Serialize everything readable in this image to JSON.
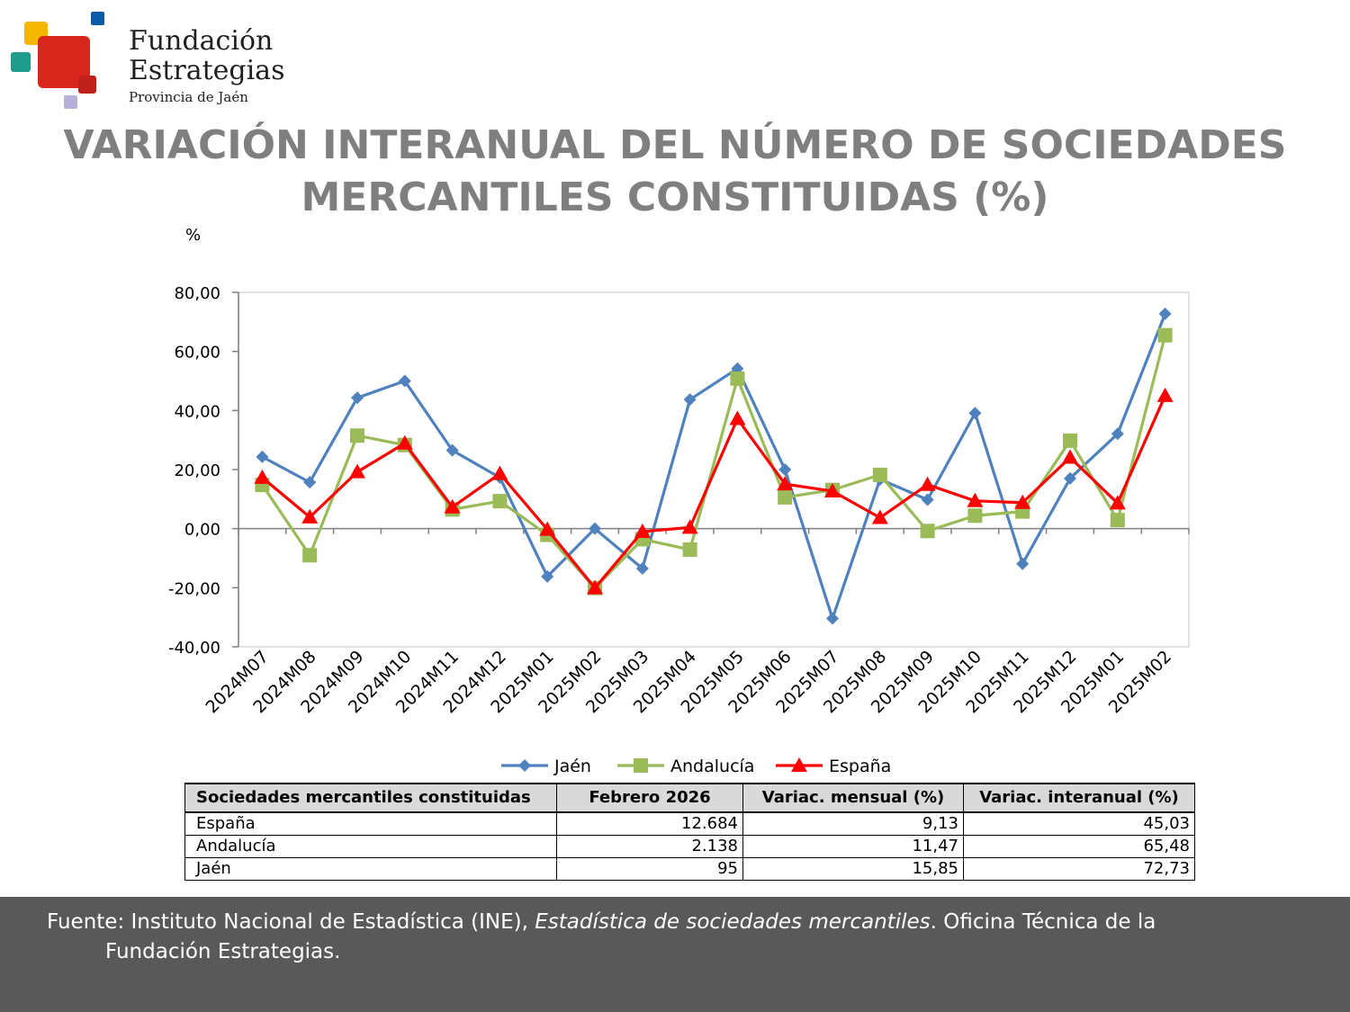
{
  "logo": {
    "line1": "Fundación",
    "line2": "Estrategias",
    "subtitle": "Provincia de Jaén",
    "colors": [
      "#f5b800",
      "#d9261c",
      "#0b5aa6",
      "#1e9c8d",
      "#b8b0d8"
    ]
  },
  "title": {
    "line1": "VARIACIÓN INTERANUAL DEL NÚMERO DE SOCIEDADES",
    "line2": "MERCANTILES CONSTITUIDAS (%)"
  },
  "chart_data": {
    "type": "line",
    "ylabel": "%",
    "ylim": [
      -40,
      80
    ],
    "yticks": [
      80,
      60,
      40,
      20,
      0,
      -20,
      -40
    ],
    "ytick_labels": [
      "80,00",
      "60,00",
      "40,00",
      "20,00",
      "0,00",
      "-20,00",
      "-40,00"
    ],
    "grid": false,
    "legend_position": "bottom",
    "categories": [
      "2024M07",
      "2024M08",
      "2024M09",
      "2024M10",
      "2024M11",
      "2024M12",
      "2025M01",
      "2025M02",
      "2025M03",
      "2025M04",
      "2025M05",
      "2025M06",
      "2025M07",
      "2025M08",
      "2025M09",
      "2025M10",
      "2025M11",
      "2025M12",
      "2025M01",
      "2025M02"
    ],
    "series": [
      {
        "name": "Jaén",
        "color": "#4f81bd",
        "marker": "diamond",
        "values": [
          24.3,
          15.7,
          44.3,
          50.0,
          26.5,
          17.3,
          -16.2,
          0.0,
          -13.5,
          43.7,
          54.2,
          20.0,
          -30.4,
          16.7,
          9.8,
          39.1,
          -11.9,
          17.0,
          32.1,
          72.73
        ]
      },
      {
        "name": "Andalucía",
        "color": "#9bbb59",
        "marker": "square",
        "values": [
          14.8,
          -9.0,
          31.5,
          28.3,
          6.5,
          9.3,
          -2.1,
          -20.1,
          -3.6,
          -7.1,
          50.8,
          10.6,
          13.1,
          18.2,
          -0.8,
          4.4,
          5.8,
          29.8,
          2.9,
          65.48
        ]
      },
      {
        "name": "España",
        "color": "#ff0000",
        "marker": "triangle",
        "values": [
          17.3,
          3.9,
          19.2,
          28.9,
          7.3,
          18.6,
          -0.3,
          -20.1,
          -1.0,
          0.4,
          37.2,
          15.1,
          12.7,
          3.7,
          14.9,
          9.4,
          8.8,
          24.1,
          8.6,
          45.03
        ]
      }
    ]
  },
  "table": {
    "headers": [
      "Sociedades mercantiles constituidas",
      "Febrero 2026",
      "Variac. mensual (%)",
      "Variac. interanual (%)"
    ],
    "rows": [
      [
        "España",
        "12.684",
        "9,13",
        "45,03"
      ],
      [
        "Andalucía",
        "2.138",
        "11,47",
        "65,48"
      ],
      [
        "Jaén",
        "95",
        "15,85",
        "72,73"
      ]
    ]
  },
  "footer": {
    "prefix": "Fuente: Instituto Nacional de Estadística (INE), ",
    "italic": "Estadística de sociedades mercantiles",
    "suffix": ". Oficina Técnica de la",
    "line2": "Fundación Estrategias."
  }
}
